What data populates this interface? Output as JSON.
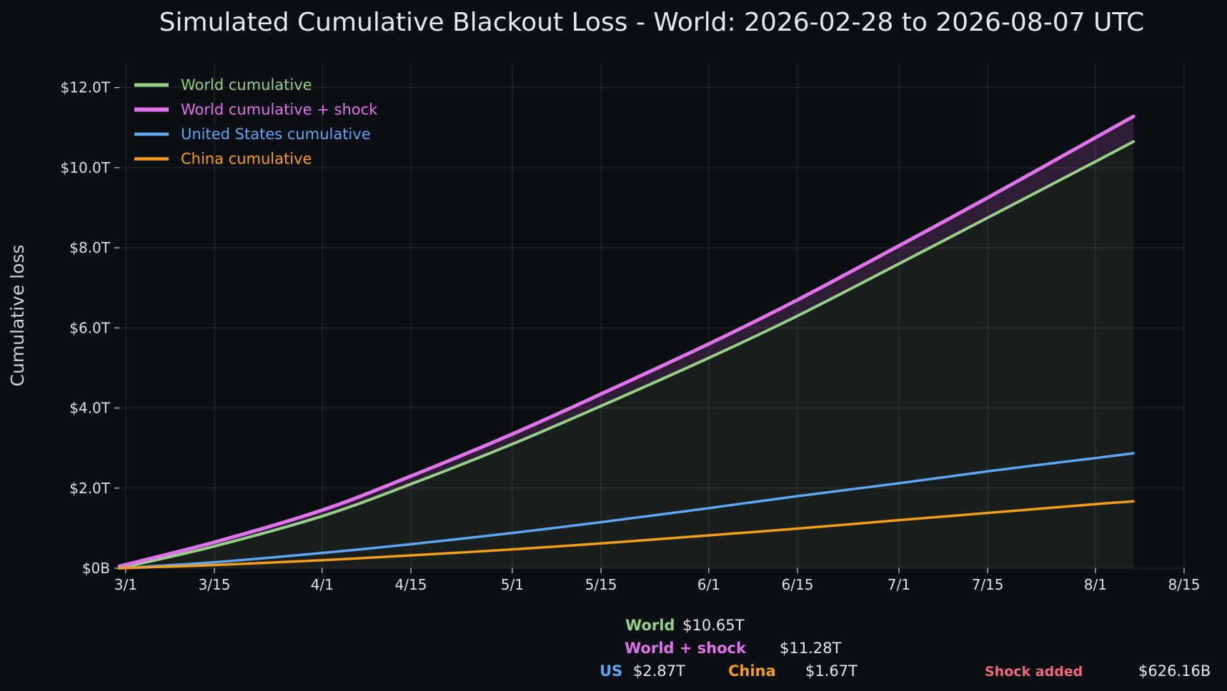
{
  "chart_data": {
    "type": "line",
    "title": "Simulated Cumulative Blackout Loss - World: 2026-02-28 to 2026-08-07 UTC",
    "xlabel": "",
    "ylabel": "Cumulative loss",
    "x_start": "2026-02-28",
    "x_end": "2026-08-07",
    "xlim": [
      "2026-02-28",
      "2026-08-15"
    ],
    "xticks": [
      {
        "label": "3/1",
        "date": "2026-03-01"
      },
      {
        "label": "3/15",
        "date": "2026-03-15"
      },
      {
        "label": "4/1",
        "date": "2026-04-01"
      },
      {
        "label": "4/15",
        "date": "2026-04-15"
      },
      {
        "label": "5/1",
        "date": "2026-05-01"
      },
      {
        "label": "5/15",
        "date": "2026-05-15"
      },
      {
        "label": "6/1",
        "date": "2026-06-01"
      },
      {
        "label": "6/15",
        "date": "2026-06-15"
      },
      {
        "label": "7/1",
        "date": "2026-07-01"
      },
      {
        "label": "7/15",
        "date": "2026-07-15"
      },
      {
        "label": "8/1",
        "date": "2026-08-01"
      },
      {
        "label": "8/15",
        "date": "2026-08-15"
      }
    ],
    "ylim": [
      0,
      12.6
    ],
    "yunit": "$T",
    "yticks": [
      {
        "label": "$0B",
        "value": 0
      },
      {
        "label": "$2.0T",
        "value": 2
      },
      {
        "label": "$4.0T",
        "value": 4
      },
      {
        "label": "$6.0T",
        "value": 6
      },
      {
        "label": "$8.0T",
        "value": 8
      },
      {
        "label": "$10.0T",
        "value": 10
      },
      {
        "label": "$12.0T",
        "value": 12
      }
    ],
    "grid": true,
    "legend_position": "top-left",
    "x_dates": [
      "2026-02-28",
      "2026-03-15",
      "2026-04-01",
      "2026-04-15",
      "2026-05-01",
      "2026-05-15",
      "2026-06-01",
      "2026-06-15",
      "2026-07-01",
      "2026-07-15",
      "2026-08-01",
      "2026-08-07"
    ],
    "series": [
      {
        "name": "World cumulative",
        "color": "#98cf86",
        "width": 4,
        "values": [
          0.0,
          0.55,
          1.3,
          2.1,
          3.1,
          4.05,
          5.25,
          6.3,
          7.6,
          8.75,
          10.15,
          10.65
        ]
      },
      {
        "name": "World cumulative + shock",
        "color": "#e072ec",
        "width": 5,
        "values": [
          0.05,
          0.65,
          1.45,
          2.3,
          3.35,
          4.35,
          5.6,
          6.7,
          8.05,
          9.25,
          10.75,
          11.28
        ]
      },
      {
        "name": "United States cumulative",
        "color": "#5ea6f3",
        "width": 3.5,
        "values": [
          0.0,
          0.15,
          0.38,
          0.6,
          0.88,
          1.15,
          1.5,
          1.8,
          2.12,
          2.42,
          2.75,
          2.87
        ]
      },
      {
        "name": "China cumulative",
        "color": "#f59e19",
        "width": 3.5,
        "values": [
          0.0,
          0.08,
          0.2,
          0.32,
          0.47,
          0.62,
          0.82,
          0.99,
          1.2,
          1.38,
          1.6,
          1.67
        ]
      }
    ]
  },
  "summary": {
    "world_label": "World",
    "world_value": "$10.65T",
    "shock_label": "World + shock",
    "shock_value": "$11.28T",
    "us_label": "US",
    "us_value": "$2.87T",
    "china_label": "China",
    "china_value": "$1.67T",
    "shock_added_label": "Shock added",
    "shock_added_value": "$626.16B",
    "colors": {
      "world": "#98cf86",
      "shock": "#e072ec",
      "us": "#5ea6f3",
      "china": "#f59e19",
      "shock_added": "#f0697a"
    }
  }
}
